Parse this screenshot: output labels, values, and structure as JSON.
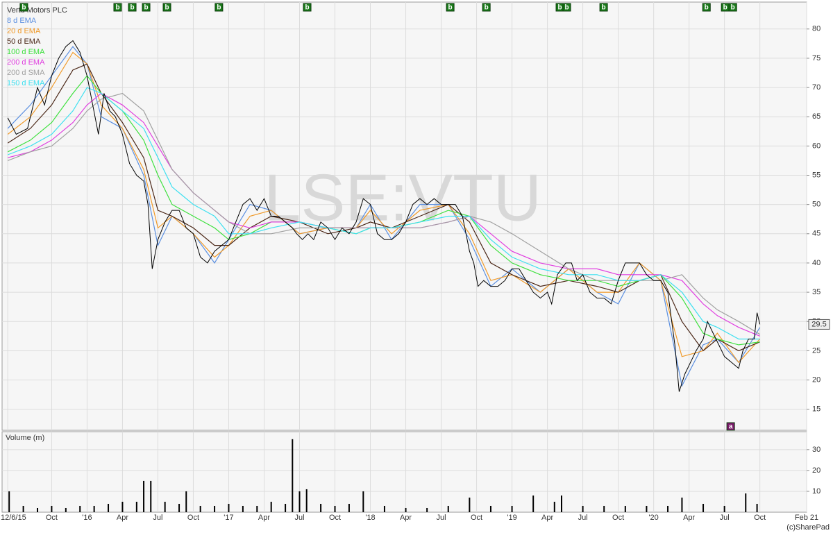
{
  "chart_data": [
    {
      "type": "line",
      "title": "Vertu Motors PLC",
      "watermark": "LSE:VTU",
      "copyright": "(c)SharePad",
      "xlim": [
        2015.4,
        2021.08
      ],
      "ylim": [
        11.4,
        84.6
      ],
      "yticks": [
        15,
        20,
        25,
        30,
        35,
        40,
        45,
        50,
        55,
        60,
        65,
        70,
        75,
        80
      ],
      "grid": true,
      "last_price": 29.5,
      "price": {
        "color": "#000000",
        "x": [
          2015.44,
          2015.5,
          2015.58,
          2015.65,
          2015.7,
          2015.75,
          2015.8,
          2015.85,
          2015.9,
          2015.95,
          2016.0,
          2016.04,
          2016.08,
          2016.12,
          2016.16,
          2016.2,
          2016.25,
          2016.3,
          2016.35,
          2016.4,
          2016.43,
          2016.46,
          2016.5,
          2016.55,
          2016.6,
          2016.65,
          2016.7,
          2016.75,
          2016.8,
          2016.85,
          2016.9,
          2016.95,
          2017.0,
          2017.05,
          2017.1,
          2017.15,
          2017.2,
          2017.25,
          2017.3,
          2017.35,
          2017.4,
          2017.45,
          2017.48,
          2017.52,
          2017.56,
          2017.6,
          2017.65,
          2017.7,
          2017.75,
          2017.8,
          2017.85,
          2017.9,
          2017.95,
          2018.0,
          2018.05,
          2018.1,
          2018.15,
          2018.2,
          2018.25,
          2018.3,
          2018.35,
          2018.4,
          2018.45,
          2018.5,
          2018.55,
          2018.6,
          2018.65,
          2018.7,
          2018.73,
          2018.76,
          2018.8,
          2018.85,
          2018.9,
          2018.95,
          2019.0,
          2019.05,
          2019.1,
          2019.15,
          2019.2,
          2019.25,
          2019.28,
          2019.32,
          2019.38,
          2019.42,
          2019.46,
          2019.5,
          2019.55,
          2019.6,
          2019.65,
          2019.7,
          2019.75,
          2019.8,
          2019.85,
          2019.9,
          2019.95,
          2020.0,
          2020.05,
          2020.1,
          2020.15,
          2020.18,
          2020.22,
          2020.26,
          2020.3,
          2020.35,
          2020.38,
          2020.42,
          2020.46,
          2020.5,
          2020.55,
          2020.6,
          2020.63,
          2020.67,
          2020.71,
          2020.73,
          2020.75
        ],
        "values": [
          64.8,
          62,
          63,
          70,
          67,
          72,
          75,
          77,
          78,
          76,
          72,
          67,
          62,
          69,
          66,
          65,
          62,
          57,
          55,
          54,
          50,
          39,
          44,
          47,
          49,
          49,
          46,
          45,
          41,
          40,
          42,
          43,
          44,
          47,
          50,
          51,
          49,
          51,
          48,
          48,
          47,
          46,
          45,
          44,
          45,
          44,
          47,
          46,
          44,
          46,
          45,
          47,
          51,
          50,
          45,
          44,
          44,
          45,
          47,
          50,
          51,
          50,
          51,
          50,
          50,
          50,
          48,
          42,
          40,
          36,
          37,
          36,
          36,
          37,
          39,
          39,
          37,
          35,
          34,
          35,
          33,
          38,
          40,
          40,
          37,
          38,
          35,
          34,
          34,
          33,
          37,
          40,
          40,
          40,
          38,
          37,
          37,
          35,
          26,
          18,
          21,
          23,
          25,
          27,
          30,
          28,
          26,
          24,
          23,
          22,
          25,
          27,
          27,
          31.5,
          29.5
        ]
      },
      "series": [
        {
          "name": "8 d EMA",
          "color": "#5b8fe0",
          "x": [
            2015.44,
            2015.6,
            2015.75,
            2015.9,
            2016.0,
            2016.1,
            2016.25,
            2016.4,
            2016.5,
            2016.6,
            2016.75,
            2016.9,
            2017.0,
            2017.15,
            2017.3,
            2017.5,
            2017.7,
            2017.9,
            2018.0,
            2018.15,
            2018.35,
            2018.55,
            2018.7,
            2018.85,
            2019.0,
            2019.2,
            2019.4,
            2019.6,
            2019.75,
            2019.9,
            2020.05,
            2020.2,
            2020.35,
            2020.45,
            2020.6,
            2020.75
          ],
          "values": [
            63,
            67,
            72,
            77,
            74,
            65,
            63,
            55,
            43,
            48,
            45,
            40,
            44,
            50,
            49,
            45,
            46,
            46,
            50,
            44,
            50,
            50,
            44,
            36,
            39,
            35,
            39,
            35,
            33,
            40,
            37,
            19,
            26,
            27,
            23,
            29
          ]
        },
        {
          "name": "20 d EMA",
          "color": "#f09a2a",
          "x": [
            2015.44,
            2015.6,
            2015.75,
            2015.9,
            2016.0,
            2016.1,
            2016.25,
            2016.4,
            2016.5,
            2016.6,
            2016.75,
            2016.9,
            2017.0,
            2017.15,
            2017.3,
            2017.5,
            2017.7,
            2017.9,
            2018.0,
            2018.15,
            2018.35,
            2018.55,
            2018.7,
            2018.85,
            2019.0,
            2019.2,
            2019.4,
            2019.6,
            2019.75,
            2019.9,
            2020.05,
            2020.2,
            2020.35,
            2020.45,
            2020.6,
            2020.75
          ],
          "values": [
            62,
            65,
            70,
            76,
            74,
            67,
            63,
            56,
            46,
            48,
            45,
            41,
            43,
            48,
            49,
            45,
            46,
            46,
            49,
            45,
            49,
            50,
            45,
            37,
            38,
            35,
            39,
            35,
            35,
            40,
            37,
            24,
            25,
            28,
            23,
            27
          ]
        },
        {
          "name": "50 d EMA",
          "color": "#4a2616",
          "x": [
            2015.44,
            2015.6,
            2015.75,
            2015.9,
            2016.0,
            2016.1,
            2016.25,
            2016.4,
            2016.5,
            2016.6,
            2016.75,
            2016.9,
            2017.0,
            2017.15,
            2017.3,
            2017.5,
            2017.7,
            2017.9,
            2018.0,
            2018.15,
            2018.35,
            2018.55,
            2018.7,
            2018.85,
            2019.0,
            2019.2,
            2019.4,
            2019.6,
            2019.75,
            2019.9,
            2020.05,
            2020.2,
            2020.35,
            2020.45,
            2020.6,
            2020.75
          ],
          "values": [
            60.5,
            63,
            67,
            73,
            74,
            69,
            64,
            58,
            49,
            48,
            46,
            43,
            43,
            46,
            48,
            47,
            45,
            46,
            47,
            46,
            48,
            50,
            47,
            40,
            38,
            36,
            37,
            36,
            35,
            37,
            38,
            30,
            25,
            27,
            25,
            26.5
          ]
        },
        {
          "name": "100 d EMA",
          "color": "#3ee03e",
          "x": [
            2015.44,
            2015.6,
            2015.75,
            2015.9,
            2016.0,
            2016.1,
            2016.25,
            2016.4,
            2016.5,
            2016.6,
            2016.75,
            2016.9,
            2017.0,
            2017.15,
            2017.3,
            2017.5,
            2017.7,
            2017.9,
            2018.0,
            2018.15,
            2018.35,
            2018.55,
            2018.7,
            2018.85,
            2019.0,
            2019.2,
            2019.4,
            2019.6,
            2019.75,
            2019.9,
            2020.05,
            2020.2,
            2020.35,
            2020.45,
            2020.6,
            2020.75
          ],
          "values": [
            59,
            61,
            64,
            69,
            72,
            69,
            66,
            61,
            55,
            50,
            48,
            46,
            44,
            45,
            47,
            47,
            46,
            45,
            46,
            46,
            47,
            49,
            48,
            43,
            40,
            38,
            37,
            37,
            36,
            37,
            38,
            34,
            28,
            27,
            26,
            26.5
          ]
        },
        {
          "name": "200 d EMA",
          "color": "#e03ee0",
          "x": [
            2015.44,
            2015.6,
            2015.75,
            2015.9,
            2016.0,
            2016.1,
            2016.25,
            2016.4,
            2016.5,
            2016.6,
            2016.75,
            2016.9,
            2017.0,
            2017.15,
            2017.3,
            2017.5,
            2017.7,
            2017.9,
            2018.0,
            2018.15,
            2018.35,
            2018.55,
            2018.7,
            2018.85,
            2019.0,
            2019.2,
            2019.4,
            2019.6,
            2019.75,
            2019.9,
            2020.05,
            2020.2,
            2020.35,
            2020.45,
            2020.6,
            2020.75
          ],
          "values": [
            58,
            59,
            61,
            64,
            67,
            69,
            67,
            64,
            60,
            56,
            52,
            49,
            47,
            46,
            47,
            47,
            46,
            46,
            46,
            46,
            46,
            47,
            48,
            45,
            42,
            40,
            39,
            39,
            38,
            38,
            38,
            37,
            33,
            31,
            29,
            27.5
          ]
        },
        {
          "name": "200 d SMA",
          "color": "#a0a0a0",
          "x": [
            2015.44,
            2015.6,
            2015.75,
            2015.9,
            2016.0,
            2016.1,
            2016.25,
            2016.4,
            2016.5,
            2016.6,
            2016.75,
            2016.9,
            2017.0,
            2017.15,
            2017.3,
            2017.5,
            2017.7,
            2017.9,
            2018.0,
            2018.15,
            2018.35,
            2018.55,
            2018.7,
            2018.85,
            2019.0,
            2019.2,
            2019.4,
            2019.6,
            2019.75,
            2019.9,
            2020.05,
            2020.2,
            2020.35,
            2020.45,
            2020.6,
            2020.75
          ],
          "values": [
            57.5,
            59,
            60,
            63,
            66,
            68,
            69,
            66,
            61,
            56,
            52,
            49,
            47,
            45,
            45,
            46,
            46,
            46,
            46,
            46,
            46,
            47,
            48,
            47,
            45,
            42,
            39,
            37,
            37,
            37,
            37,
            38,
            34,
            32,
            30,
            27.8
          ]
        },
        {
          "name": "150 d EMA",
          "color": "#3ee0f0",
          "x": [
            2015.44,
            2015.6,
            2015.75,
            2015.9,
            2016.0,
            2016.1,
            2016.25,
            2016.4,
            2016.5,
            2016.6,
            2016.75,
            2016.9,
            2017.0,
            2017.15,
            2017.3,
            2017.5,
            2017.7,
            2017.9,
            2018.0,
            2018.15,
            2018.35,
            2018.55,
            2018.7,
            2018.85,
            2019.0,
            2019.2,
            2019.4,
            2019.6,
            2019.75,
            2019.9,
            2020.05,
            2020.2,
            2020.35,
            2020.45,
            2020.6,
            2020.75
          ],
          "values": [
            58.5,
            60,
            62,
            66,
            70,
            69,
            66,
            63,
            58,
            53,
            50,
            48,
            45,
            45,
            46,
            47,
            46,
            45,
            46,
            46,
            47,
            48,
            48,
            44,
            41,
            39,
            38,
            38,
            37,
            37,
            38,
            35,
            30,
            29,
            27,
            27
          ]
        }
      ],
      "events": [
        {
          "label": "b",
          "x": 2015.554
        },
        {
          "label": "b",
          "x": 2016.216
        },
        {
          "label": "b",
          "x": 2016.319
        },
        {
          "label": "b",
          "x": 2016.417
        },
        {
          "label": "b",
          "x": 2016.564
        },
        {
          "label": "b",
          "x": 2016.931
        },
        {
          "label": "b",
          "x": 2017.554
        },
        {
          "label": "b",
          "x": 2018.564
        },
        {
          "label": "b",
          "x": 2018.819
        },
        {
          "label": "b",
          "x": 2019.338
        },
        {
          "label": "b",
          "x": 2019.387
        },
        {
          "label": "b",
          "x": 2019.647
        },
        {
          "label": "b",
          "x": 2020.373
        },
        {
          "label": "b",
          "x": 2020.505
        },
        {
          "label": "b",
          "x": 2020.559
        },
        {
          "label": "a",
          "x": 2020.544
        }
      ]
    },
    {
      "type": "bar",
      "title": "Volume (m)",
      "color": "#000000",
      "xlim": [
        2015.4,
        2021.08
      ],
      "ylim": [
        0,
        38.6
      ],
      "yticks": [
        10,
        20,
        30
      ],
      "grid": true,
      "xticks": [
        {
          "value": 2015.44,
          "label": "12/6/15"
        },
        {
          "value": 2015.75,
          "label": "Oct"
        },
        {
          "value": 2016,
          "label": "'16"
        },
        {
          "value": 2016.25,
          "label": "Apr"
        },
        {
          "value": 2016.5,
          "label": "Jul"
        },
        {
          "value": 2016.75,
          "label": "Oct"
        },
        {
          "value": 2017,
          "label": "'17"
        },
        {
          "value": 2017.25,
          "label": "Apr"
        },
        {
          "value": 2017.5,
          "label": "Jul"
        },
        {
          "value": 2017.75,
          "label": "Oct"
        },
        {
          "value": 2018,
          "label": "'18"
        },
        {
          "value": 2018.25,
          "label": "Apr"
        },
        {
          "value": 2018.5,
          "label": "Jul"
        },
        {
          "value": 2018.75,
          "label": "Oct"
        },
        {
          "value": 2019,
          "label": "'19"
        },
        {
          "value": 2019.25,
          "label": "Apr"
        },
        {
          "value": 2019.5,
          "label": "Jul"
        },
        {
          "value": 2019.75,
          "label": "Oct"
        },
        {
          "value": 2020,
          "label": "'20"
        },
        {
          "value": 2020.25,
          "label": "Apr"
        },
        {
          "value": 2020.5,
          "label": "Jul"
        },
        {
          "value": 2020.75,
          "label": "Oct"
        },
        {
          "value": 2021.08,
          "label": "Feb 21"
        }
      ],
      "x": [
        2015.45,
        2015.55,
        2015.65,
        2015.75,
        2015.85,
        2015.95,
        2016.05,
        2016.15,
        2016.25,
        2016.35,
        2016.4,
        2016.45,
        2016.55,
        2016.65,
        2016.7,
        2016.8,
        2016.9,
        2017.0,
        2017.1,
        2017.2,
        2017.3,
        2017.4,
        2017.45,
        2017.5,
        2017.55,
        2017.65,
        2017.75,
        2017.85,
        2017.95,
        2018.1,
        2018.25,
        2018.4,
        2018.55,
        2018.7,
        2018.85,
        2019.0,
        2019.15,
        2019.3,
        2019.35,
        2019.5,
        2019.65,
        2019.8,
        2019.95,
        2020.1,
        2020.2,
        2020.35,
        2020.5,
        2020.65,
        2020.73
      ],
      "values": [
        10,
        3,
        2,
        3,
        2,
        3,
        3,
        4,
        5,
        5,
        15,
        15,
        5,
        4,
        10,
        3,
        3,
        4,
        3,
        3,
        5,
        4,
        35,
        10,
        11,
        4,
        3,
        4,
        10,
        3,
        2,
        2,
        3,
        7,
        3,
        3,
        8,
        5,
        8,
        3,
        3,
        3,
        3,
        3,
        7,
        4,
        3,
        9,
        4
      ]
    }
  ]
}
